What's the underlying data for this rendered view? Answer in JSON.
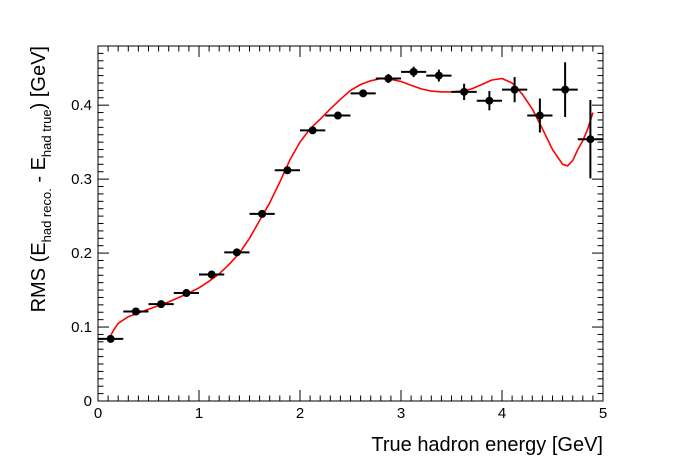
{
  "chart_data": {
    "type": "scatter",
    "xlabel": "True hadron energy [GeV]",
    "ylabel": {
      "prefix": "RMS (E",
      "sub1": "had reco.",
      "middle": " - E",
      "sub2": "had true",
      "suffix": ") [GeV]"
    },
    "xlim": [
      0,
      5
    ],
    "ylim": [
      0,
      0.48
    ],
    "x_ticks": [
      0,
      1,
      2,
      3,
      4,
      5
    ],
    "x_tick_labels": [
      "0",
      "1",
      "2",
      "3",
      "4",
      "5"
    ],
    "y_ticks": [
      0,
      0.1,
      0.2,
      0.3,
      0.4
    ],
    "y_tick_labels": [
      "0",
      "0.1",
      "0.2",
      "0.3",
      "0.4"
    ],
    "grid": false,
    "legend": "none",
    "colors": {
      "points": "#000000",
      "fit": "#ff0000",
      "frame": "#000000"
    },
    "series": [
      {
        "kind": "points_with_errors",
        "x": [
          0.125,
          0.375,
          0.625,
          0.875,
          1.125,
          1.375,
          1.625,
          1.875,
          2.125,
          2.375,
          2.625,
          2.875,
          3.125,
          3.375,
          3.625,
          3.875,
          4.125,
          4.375,
          4.625,
          4.875
        ],
        "x_err": [
          0.125,
          0.125,
          0.125,
          0.125,
          0.125,
          0.125,
          0.125,
          0.125,
          0.125,
          0.125,
          0.125,
          0.125,
          0.125,
          0.125,
          0.125,
          0.125,
          0.125,
          0.125,
          0.125,
          0.125
        ],
        "y": [
          0.084,
          0.121,
          0.131,
          0.146,
          0.171,
          0.201,
          0.253,
          0.312,
          0.366,
          0.386,
          0.416,
          0.436,
          0.445,
          0.44,
          0.418,
          0.406,
          0.421,
          0.386,
          0.421,
          0.354
        ],
        "y_err": [
          0.004,
          0.004,
          0.004,
          0.004,
          0.004,
          0.004,
          0.005,
          0.005,
          0.005,
          0.005,
          0.005,
          0.006,
          0.007,
          0.008,
          0.011,
          0.013,
          0.017,
          0.023,
          0.037,
          0.053
        ]
      },
      {
        "kind": "fit_curve",
        "x": [
          0.1,
          0.15,
          0.2,
          0.3,
          0.4,
          0.5,
          0.6,
          0.7,
          0.8,
          0.9,
          1.0,
          1.1,
          1.2,
          1.3,
          1.4,
          1.5,
          1.6,
          1.7,
          1.8,
          1.9,
          2.0,
          2.1,
          2.2,
          2.3,
          2.4,
          2.5,
          2.6,
          2.7,
          2.8,
          2.9,
          3.0,
          3.1,
          3.2,
          3.3,
          3.4,
          3.5,
          3.6,
          3.7,
          3.8,
          3.9,
          4.0,
          4.1,
          4.2,
          4.3,
          4.4,
          4.5,
          4.6,
          4.65,
          4.7,
          4.75,
          4.8,
          4.85,
          4.9
        ],
        "y": [
          0.082,
          0.095,
          0.105,
          0.114,
          0.119,
          0.124,
          0.129,
          0.134,
          0.14,
          0.146,
          0.153,
          0.162,
          0.172,
          0.185,
          0.2,
          0.22,
          0.244,
          0.268,
          0.296,
          0.326,
          0.35,
          0.368,
          0.381,
          0.395,
          0.408,
          0.42,
          0.428,
          0.433,
          0.436,
          0.435,
          0.432,
          0.427,
          0.422,
          0.419,
          0.418,
          0.418,
          0.419,
          0.422,
          0.428,
          0.434,
          0.436,
          0.43,
          0.415,
          0.395,
          0.368,
          0.34,
          0.32,
          0.318,
          0.325,
          0.34,
          0.352,
          0.368,
          0.39
        ]
      }
    ]
  }
}
